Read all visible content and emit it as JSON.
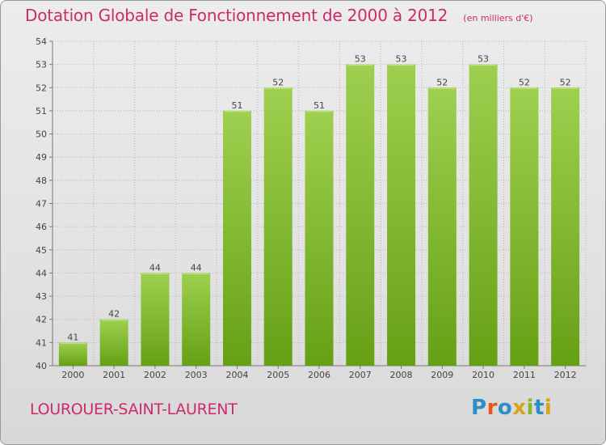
{
  "title": "Dotation Globale de Fonctionnement de 2000 à 2012",
  "unit": "(en milliers d'€)",
  "commune": "LOUROUER-SAINT-LAURENT",
  "logo": {
    "text": "Proxiti",
    "letter_colors": [
      "#2a8ec9",
      "#e8541c",
      "#2a8ec9",
      "#d8a21a",
      "#86b62c",
      "#2a8ec9",
      "#d8a21a"
    ]
  },
  "colors": {
    "bar_top": "#9ed04f",
    "bar_bottom": "#66a015",
    "grid": "#b9b9b9",
    "title": "#cc2a6b"
  },
  "chart_data": {
    "type": "bar",
    "title": "Dotation Globale de Fonctionnement de 2000 à 2012",
    "subtitle": "(en milliers d'€)",
    "categories": [
      "2000",
      "2001",
      "2002",
      "2003",
      "2004",
      "2005",
      "2006",
      "2007",
      "2008",
      "2009",
      "2010",
      "2011",
      "2012"
    ],
    "values": [
      41,
      42,
      44,
      44,
      51,
      52,
      51,
      53,
      53,
      52,
      53,
      52,
      52
    ],
    "ylim": [
      40,
      54
    ],
    "yticks": [
      40,
      41,
      42,
      43,
      44,
      45,
      46,
      47,
      48,
      49,
      50,
      51,
      52,
      53,
      54
    ],
    "grid": true,
    "data_labels": true
  }
}
